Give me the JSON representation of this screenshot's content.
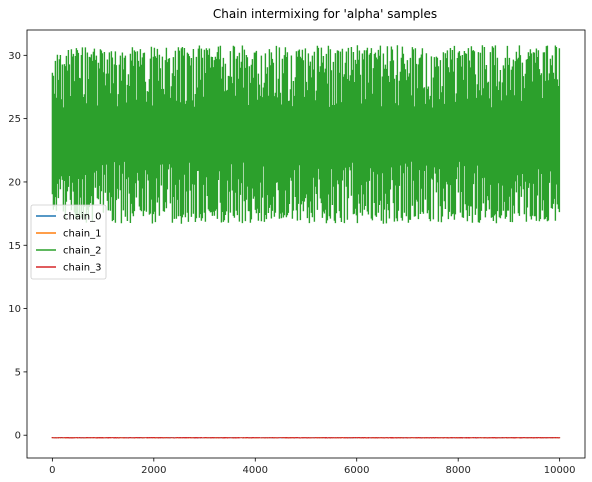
{
  "chart_data": {
    "type": "line",
    "title": "Chain intermixing for 'alpha' samples",
    "xlabel": "",
    "ylabel": "",
    "xlim": [
      -500,
      10500
    ],
    "ylim": [
      -1.8,
      32.0
    ],
    "x_ticks": [
      0,
      2000,
      4000,
      6000,
      8000,
      10000
    ],
    "x_tick_labels": [
      "0",
      "2000",
      "4000",
      "6000",
      "8000",
      "10000"
    ],
    "y_ticks": [
      0,
      5,
      10,
      15,
      20,
      25,
      30
    ],
    "y_tick_labels": [
      "0",
      "5",
      "10",
      "15",
      "20",
      "25",
      "30"
    ],
    "grid": false,
    "legend_position": "center-left",
    "n_samples": 10000,
    "series": [
      {
        "name": "chain_0",
        "color": "#1f77b4",
        "center": -0.2,
        "min": -0.25,
        "max": -0.15
      },
      {
        "name": "chain_1",
        "color": "#ff7f0e",
        "center": -0.2,
        "min": -0.25,
        "max": -0.15
      },
      {
        "name": "chain_2",
        "color": "#2ca02c",
        "center": 23.0,
        "min": 16.7,
        "max": 30.8
      },
      {
        "name": "chain_3",
        "color": "#d62728",
        "center": -0.2,
        "min": -0.26,
        "max": -0.14
      }
    ]
  }
}
